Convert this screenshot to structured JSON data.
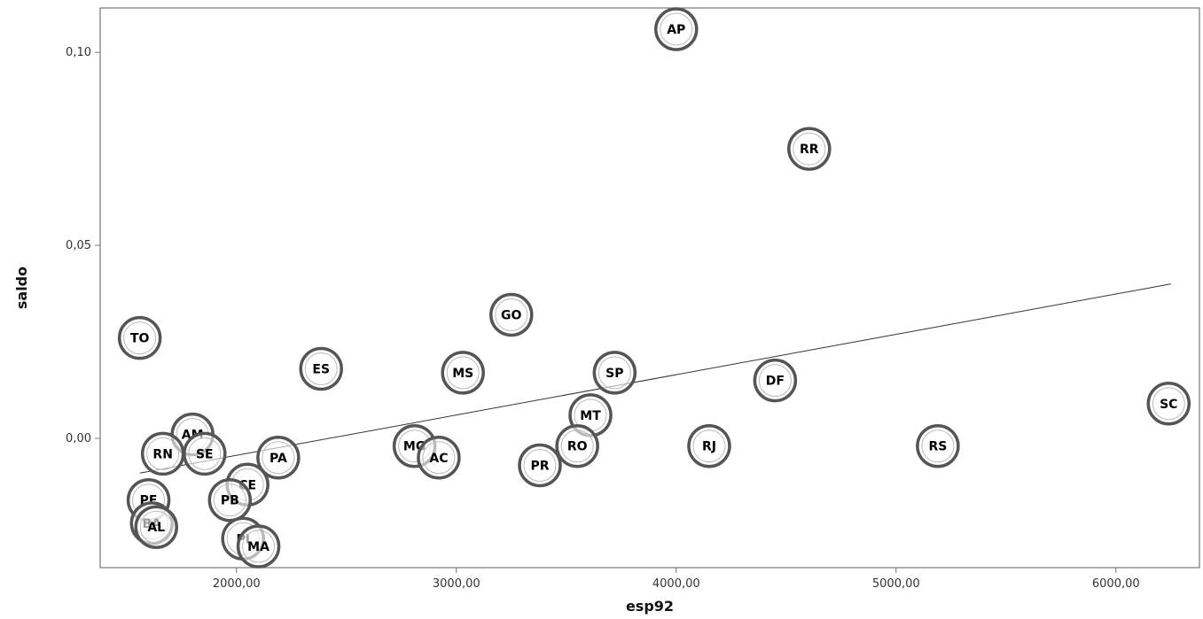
{
  "chart_data": {
    "type": "scatter",
    "xlabel": "esp92",
    "ylabel": "saldo",
    "xlim": [
      1380,
      6380
    ],
    "ylim": [
      -0.0335,
      0.1115
    ],
    "x_ticks": [
      {
        "value": 2000,
        "label": "2000,00"
      },
      {
        "value": 3000,
        "label": "3000,00"
      },
      {
        "value": 4000,
        "label": "4000,00"
      },
      {
        "value": 5000,
        "label": "5000,00"
      },
      {
        "value": 6000,
        "label": "6000,00"
      }
    ],
    "y_ticks": [
      {
        "value": 0.0,
        "label": "0,00"
      },
      {
        "value": 0.05,
        "label": "0,05"
      },
      {
        "value": 0.1,
        "label": "0,10"
      }
    ],
    "grid": false,
    "points": [
      {
        "label": "AP",
        "x": 4000,
        "y": 0.106
      },
      {
        "label": "RR",
        "x": 4605,
        "y": 0.075
      },
      {
        "label": "GO",
        "x": 3250,
        "y": 0.032
      },
      {
        "label": "TO",
        "x": 1560,
        "y": 0.026
      },
      {
        "label": "ES",
        "x": 2385,
        "y": 0.018
      },
      {
        "label": "MS",
        "x": 3030,
        "y": 0.017
      },
      {
        "label": "SP",
        "x": 3720,
        "y": 0.017
      },
      {
        "label": "DF",
        "x": 4450,
        "y": 0.015
      },
      {
        "label": "SC",
        "x": 6240,
        "y": 0.009
      },
      {
        "label": "MT",
        "x": 3610,
        "y": 0.006
      },
      {
        "label": "AM",
        "x": 1800,
        "y": 0.001
      },
      {
        "label": "RO",
        "x": 3550,
        "y": -0.002
      },
      {
        "label": "RJ",
        "x": 4150,
        "y": -0.002
      },
      {
        "label": "RS",
        "x": 5190,
        "y": -0.002
      },
      {
        "label": "MG",
        "x": 2810,
        "y": -0.002
      },
      {
        "label": "AC",
        "x": 2920,
        "y": -0.005
      },
      {
        "label": "RN",
        "x": 1665,
        "y": -0.004
      },
      {
        "label": "SE",
        "x": 1855,
        "y": -0.004
      },
      {
        "label": "PA",
        "x": 2190,
        "y": -0.005
      },
      {
        "label": "PR",
        "x": 3380,
        "y": -0.007
      },
      {
        "label": "CE",
        "x": 2050,
        "y": -0.012
      },
      {
        "label": "PE",
        "x": 1600,
        "y": -0.016
      },
      {
        "label": "PB",
        "x": 1970,
        "y": -0.016
      },
      {
        "label": "BA",
        "x": 1615,
        "y": -0.022
      },
      {
        "label": "AL",
        "x": 1635,
        "y": -0.023
      },
      {
        "label": "PI",
        "x": 2030,
        "y": -0.026
      },
      {
        "label": "MA",
        "x": 2100,
        "y": -0.028
      }
    ],
    "fit_line": {
      "x": [
        1560,
        6250
      ],
      "y": [
        -0.009,
        0.04
      ]
    }
  }
}
